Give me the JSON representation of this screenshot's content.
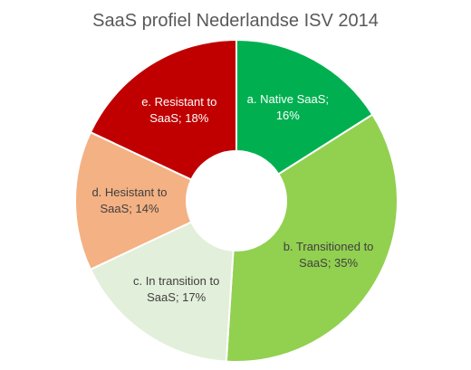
{
  "chart_data": {
    "type": "donut",
    "title": "SaaS profiel Nederlandse ISV 2014",
    "values": [
      16,
      35,
      17,
      14,
      18
    ],
    "value_labels": [
      "a. Native SaaS; 16%",
      "b. Transitioned to SaaS; 35%",
      "c. In transition to SaaS; 17%",
      "d. Hesistant to SaaS; 14%",
      "e. Resistant to SaaS; 18%"
    ],
    "colors": [
      "#00b050",
      "#92d050",
      "#e2efda",
      "#f4b183",
      "#c00000"
    ]
  }
}
